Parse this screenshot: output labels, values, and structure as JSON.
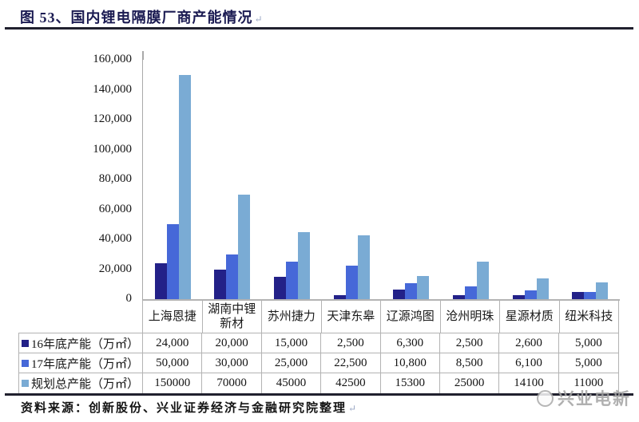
{
  "header": {
    "title": "图 53、国内锂电隔膜厂商产能情况",
    "paragraph_mark": "↵"
  },
  "footer": {
    "source": "资料来源：创新股份、兴业证券经济与金融研究院整理",
    "paragraph_mark": "↵",
    "watermark": "兴业电新"
  },
  "colors": {
    "title_text": "#1b1b52",
    "rule": "#20202e",
    "table_border": "#b3b3b3",
    "axis_line": "#a9a9a9",
    "series_16": "#232188",
    "series_17": "#4668d8",
    "series_plan": "#7aabd4",
    "watermark": "#a3a3a3"
  },
  "chart_data": {
    "type": "bar",
    "title": "图 53、国内锂电隔膜厂商产能情况",
    "categories": [
      "上海恩捷",
      "湖南中锂新材",
      "苏州捷力",
      "天津东皋",
      "辽源鸿图",
      "沧州明珠",
      "星源材质",
      "纽米科技"
    ],
    "series": [
      {
        "name": "16年底产能（万㎡）",
        "color": "#232188",
        "values": [
          24000,
          20000,
          15000,
          2500,
          6300,
          2500,
          2600,
          5000
        ],
        "display": [
          "24,000",
          "20,000",
          "15,000",
          "2,500",
          "6,300",
          "2,500",
          "2,600",
          "5,000"
        ]
      },
      {
        "name": "17年底产能（万㎡）",
        "color": "#4668d8",
        "values": [
          50000,
          30000,
          25000,
          22500,
          10800,
          8500,
          6100,
          5000
        ],
        "display": [
          "50,000",
          "30,000",
          "25,000",
          "22,500",
          "10,800",
          "8,500",
          "6,100",
          "5,000"
        ]
      },
      {
        "name": "规划总产能（万㎡）",
        "color": "#7aabd4",
        "values": [
          150000,
          70000,
          45000,
          42500,
          15300,
          25000,
          14100,
          11000
        ],
        "display": [
          "150000",
          "70000",
          "45000",
          "42500",
          "15300",
          "25000",
          "14100",
          "11000"
        ]
      }
    ],
    "xlabel": "",
    "ylabel": "",
    "ylim": [
      0,
      160000
    ],
    "ytick_step": 20000,
    "ytick_labels": [
      "0",
      "20,000",
      "40,000",
      "60,000",
      "80,000",
      "100,000",
      "120,000",
      "140,000",
      "160,000"
    ],
    "grid": false,
    "legend_position": "table-below-as-rows"
  }
}
